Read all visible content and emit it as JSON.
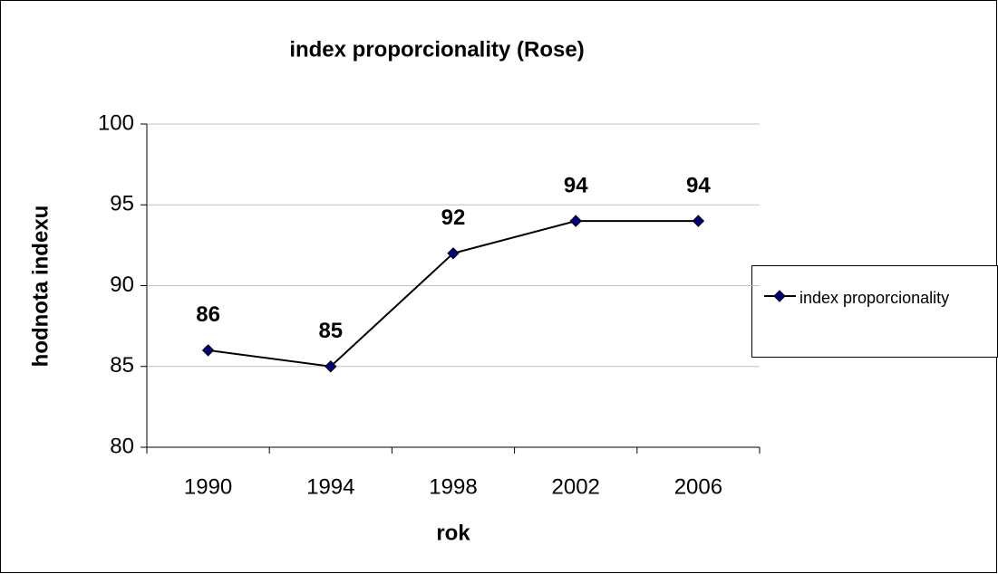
{
  "chart_data": {
    "type": "line",
    "title": "index proporcionality (Rose)",
    "x_label": "rok",
    "y_label": "hodnota indexu",
    "categories": [
      "1990",
      "1994",
      "1998",
      "2002",
      "2006"
    ],
    "series": [
      {
        "name": "index proporcionality",
        "color": "#000080",
        "values": [
          86,
          85,
          92,
          94,
          94
        ]
      }
    ],
    "ylim": [
      80,
      100
    ],
    "yticks": [
      80,
      85,
      90,
      95,
      100
    ],
    "grid": true,
    "legend": "right",
    "data_labels": true
  }
}
